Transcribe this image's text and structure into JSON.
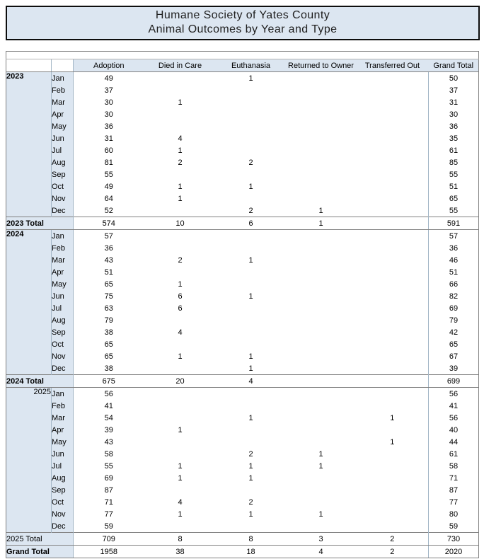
{
  "title": {
    "line1": "Humane Society of Yates County",
    "line2": "Animal Outcomes by Year and Type"
  },
  "colors": {
    "title_fill": "#dce6f1",
    "title_border": "#0d0d0d",
    "header_fill": "#dce6f1",
    "section_border": "#808080",
    "column_border": "#a3b6c6",
    "spacer_border": "#b3b3b3",
    "text": "#000000"
  },
  "table": {
    "column_headers": [
      "Adoption",
      "Died in Care",
      "Euthanasia",
      "Returned to Owner",
      "Transferred Out",
      "Grand Total"
    ],
    "groups": [
      {
        "year": "2023",
        "year_bold": true,
        "year_align": "left",
        "rows": [
          {
            "month": "Jan",
            "values": [
              49,
              null,
              1,
              null,
              null,
              50
            ]
          },
          {
            "month": "Feb",
            "values": [
              37,
              null,
              null,
              null,
              null,
              37
            ]
          },
          {
            "month": "Mar",
            "values": [
              30,
              1,
              null,
              null,
              null,
              31
            ]
          },
          {
            "month": "Apr",
            "values": [
              30,
              null,
              null,
              null,
              null,
              30
            ]
          },
          {
            "month": "May",
            "values": [
              36,
              null,
              null,
              null,
              null,
              36
            ]
          },
          {
            "month": "Jun",
            "values": [
              31,
              4,
              null,
              null,
              null,
              35
            ]
          },
          {
            "month": "Jul",
            "values": [
              60,
              1,
              null,
              null,
              null,
              61
            ]
          },
          {
            "month": "Aug",
            "values": [
              81,
              2,
              2,
              null,
              null,
              85
            ]
          },
          {
            "month": "Sep",
            "values": [
              55,
              null,
              null,
              null,
              null,
              55
            ]
          },
          {
            "month": "Oct",
            "values": [
              49,
              1,
              1,
              null,
              null,
              51
            ]
          },
          {
            "month": "Nov",
            "values": [
              64,
              1,
              null,
              null,
              null,
              65
            ]
          },
          {
            "month": "Dec",
            "values": [
              52,
              null,
              2,
              1,
              null,
              55
            ]
          }
        ],
        "total": {
          "label": "2023 Total",
          "bold": true,
          "values": [
            574,
            10,
            6,
            1,
            null,
            591
          ]
        }
      },
      {
        "year": "2024",
        "year_bold": true,
        "year_align": "left",
        "rows": [
          {
            "month": "Jan",
            "values": [
              57,
              null,
              null,
              null,
              null,
              57
            ]
          },
          {
            "month": "Feb",
            "values": [
              36,
              null,
              null,
              null,
              null,
              36
            ]
          },
          {
            "month": "Mar",
            "values": [
              43,
              2,
              1,
              null,
              null,
              46
            ]
          },
          {
            "month": "Apr",
            "values": [
              51,
              null,
              null,
              null,
              null,
              51
            ]
          },
          {
            "month": "May",
            "values": [
              65,
              1,
              null,
              null,
              null,
              66
            ]
          },
          {
            "month": "Jun",
            "values": [
              75,
              6,
              1,
              null,
              null,
              82
            ]
          },
          {
            "month": "Jul",
            "values": [
              63,
              6,
              null,
              null,
              null,
              69
            ]
          },
          {
            "month": "Aug",
            "values": [
              79,
              null,
              null,
              null,
              null,
              79
            ]
          },
          {
            "month": "Sep",
            "values": [
              38,
              4,
              null,
              null,
              null,
              42
            ]
          },
          {
            "month": "Oct",
            "values": [
              65,
              null,
              null,
              null,
              null,
              65
            ]
          },
          {
            "month": "Nov",
            "values": [
              65,
              1,
              1,
              null,
              null,
              67
            ]
          },
          {
            "month": "Dec",
            "values": [
              38,
              null,
              1,
              null,
              null,
              39
            ]
          }
        ],
        "total": {
          "label": "2024 Total",
          "bold": true,
          "values": [
            675,
            20,
            4,
            null,
            null,
            699
          ]
        }
      },
      {
        "year": "2025",
        "year_bold": false,
        "year_align": "right",
        "rows": [
          {
            "month": "Jan",
            "values": [
              56,
              null,
              null,
              null,
              null,
              56
            ]
          },
          {
            "month": "Feb",
            "values": [
              41,
              null,
              null,
              null,
              null,
              41
            ]
          },
          {
            "month": "Mar",
            "values": [
              54,
              null,
              1,
              null,
              1,
              56
            ]
          },
          {
            "month": "Apr",
            "values": [
              39,
              1,
              null,
              null,
              null,
              40
            ]
          },
          {
            "month": "May",
            "values": [
              43,
              null,
              null,
              null,
              1,
              44
            ]
          },
          {
            "month": "Jun",
            "values": [
              58,
              null,
              2,
              1,
              null,
              61
            ]
          },
          {
            "month": "Jul",
            "values": [
              55,
              1,
              1,
              1,
              null,
              58
            ]
          },
          {
            "month": "Aug",
            "values": [
              69,
              1,
              1,
              null,
              null,
              71
            ]
          },
          {
            "month": "Sep",
            "values": [
              87,
              null,
              null,
              null,
              null,
              87
            ]
          },
          {
            "month": "Oct",
            "values": [
              71,
              4,
              2,
              null,
              null,
              77
            ]
          },
          {
            "month": "Nov",
            "values": [
              77,
              1,
              1,
              1,
              null,
              80
            ]
          },
          {
            "month": "Dec",
            "values": [
              59,
              null,
              null,
              null,
              null,
              59
            ]
          }
        ],
        "total": {
          "label": "2025 Total",
          "bold": false,
          "values": [
            709,
            8,
            8,
            3,
            2,
            730
          ]
        }
      }
    ],
    "grand_total": {
      "label": "Grand Total",
      "bold": true,
      "values": [
        1958,
        38,
        18,
        4,
        2,
        2020
      ]
    }
  }
}
